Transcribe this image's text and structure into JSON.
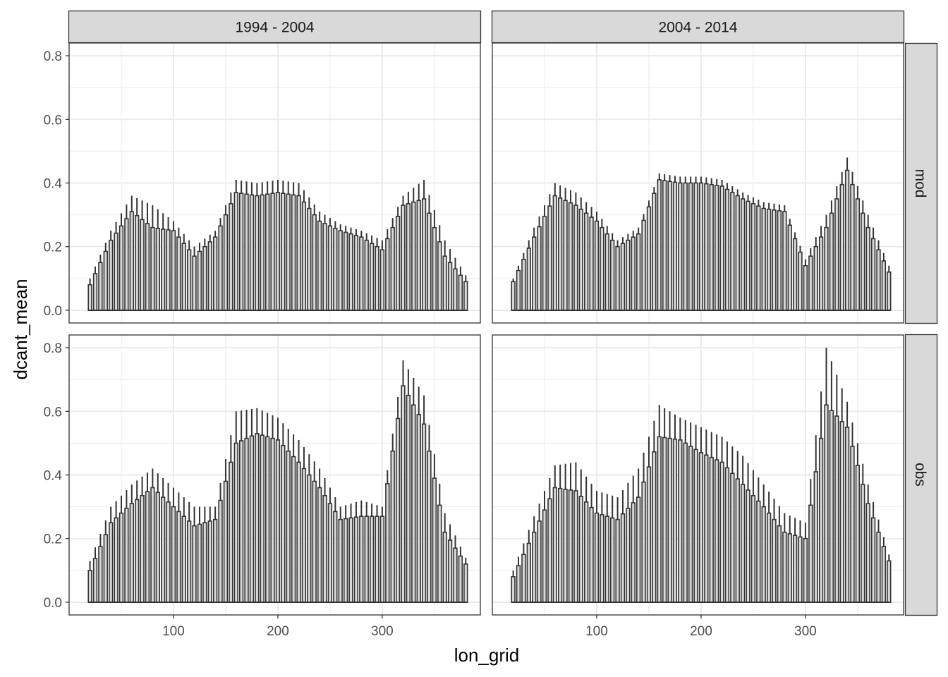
{
  "chart_data": {
    "type": "bar",
    "theme": "black-and-white with faceted panels, light grey grid",
    "grid": true,
    "legend": "none",
    "xlabel": "lon_grid",
    "ylabel": "dcant_mean",
    "xlim": [
      0,
      394
    ],
    "ylim": [
      -0.04,
      0.84
    ],
    "x_ticks": [
      100,
      200,
      300
    ],
    "y_ticks": [
      0.0,
      0.2,
      0.4,
      0.6,
      0.8
    ],
    "x_tick_labels": [
      "100",
      "200",
      "300"
    ],
    "y_tick_labels": [
      "0.0",
      "0.2",
      "0.4",
      "0.6",
      "0.8"
    ],
    "column_facets": [
      "1994 - 2004",
      "2004 - 2014"
    ],
    "row_facets": [
      "mod",
      "obs"
    ],
    "colors": {
      "bar_fill": "#d9d9d9",
      "bar_outline": "#333333",
      "strip_fill": "#d9d9d9",
      "grid": "#ebebeb",
      "panel_border": "#333333"
    },
    "bar_x": [
      20,
      40,
      60,
      80,
      100,
      120,
      140,
      160,
      180,
      200,
      220,
      240,
      260,
      280,
      300,
      320,
      340,
      360,
      380
    ],
    "panels": [
      {
        "column": "1994 - 2004",
        "row": "mod",
        "profile": [
          0.08,
          0.22,
          0.31,
          0.26,
          0.25,
          0.17,
          0.23,
          0.37,
          0.36,
          0.37,
          0.36,
          0.28,
          0.25,
          0.23,
          0.19,
          0.33,
          0.35,
          0.17,
          0.09
        ],
        "upper": [
          0.1,
          0.25,
          0.36,
          0.33,
          0.28,
          0.2,
          0.25,
          0.41,
          0.4,
          0.41,
          0.4,
          0.31,
          0.27,
          0.25,
          0.22,
          0.36,
          0.41,
          0.22,
          0.11
        ]
      },
      {
        "column": "2004 - 2014",
        "row": "mod",
        "profile": [
          0.09,
          0.23,
          0.36,
          0.33,
          0.28,
          0.2,
          0.24,
          0.41,
          0.4,
          0.4,
          0.39,
          0.35,
          0.32,
          0.31,
          0.14,
          0.26,
          0.44,
          0.26,
          0.12
        ],
        "upper": [
          0.1,
          0.26,
          0.4,
          0.37,
          0.31,
          0.22,
          0.26,
          0.43,
          0.42,
          0.42,
          0.41,
          0.37,
          0.34,
          0.33,
          0.16,
          0.3,
          0.48,
          0.3,
          0.14
        ]
      },
      {
        "column": "1994 - 2004",
        "row": "obs",
        "profile": [
          0.1,
          0.25,
          0.31,
          0.36,
          0.3,
          0.24,
          0.26,
          0.5,
          0.53,
          0.51,
          0.44,
          0.36,
          0.26,
          0.27,
          0.27,
          0.68,
          0.56,
          0.22,
          0.12
        ],
        "upper": [
          0.13,
          0.3,
          0.37,
          0.42,
          0.36,
          0.3,
          0.3,
          0.6,
          0.61,
          0.58,
          0.51,
          0.42,
          0.3,
          0.32,
          0.3,
          0.76,
          0.65,
          0.28,
          0.14
        ]
      },
      {
        "column": "2004 - 2014",
        "row": "obs",
        "profile": [
          0.08,
          0.22,
          0.36,
          0.35,
          0.28,
          0.26,
          0.33,
          0.52,
          0.51,
          0.47,
          0.44,
          0.37,
          0.3,
          0.22,
          0.2,
          0.62,
          0.55,
          0.31,
          0.13
        ],
        "upper": [
          0.1,
          0.27,
          0.43,
          0.44,
          0.35,
          0.33,
          0.42,
          0.62,
          0.58,
          0.55,
          0.52,
          0.46,
          0.37,
          0.28,
          0.25,
          0.8,
          0.63,
          0.37,
          0.15
        ]
      }
    ]
  }
}
